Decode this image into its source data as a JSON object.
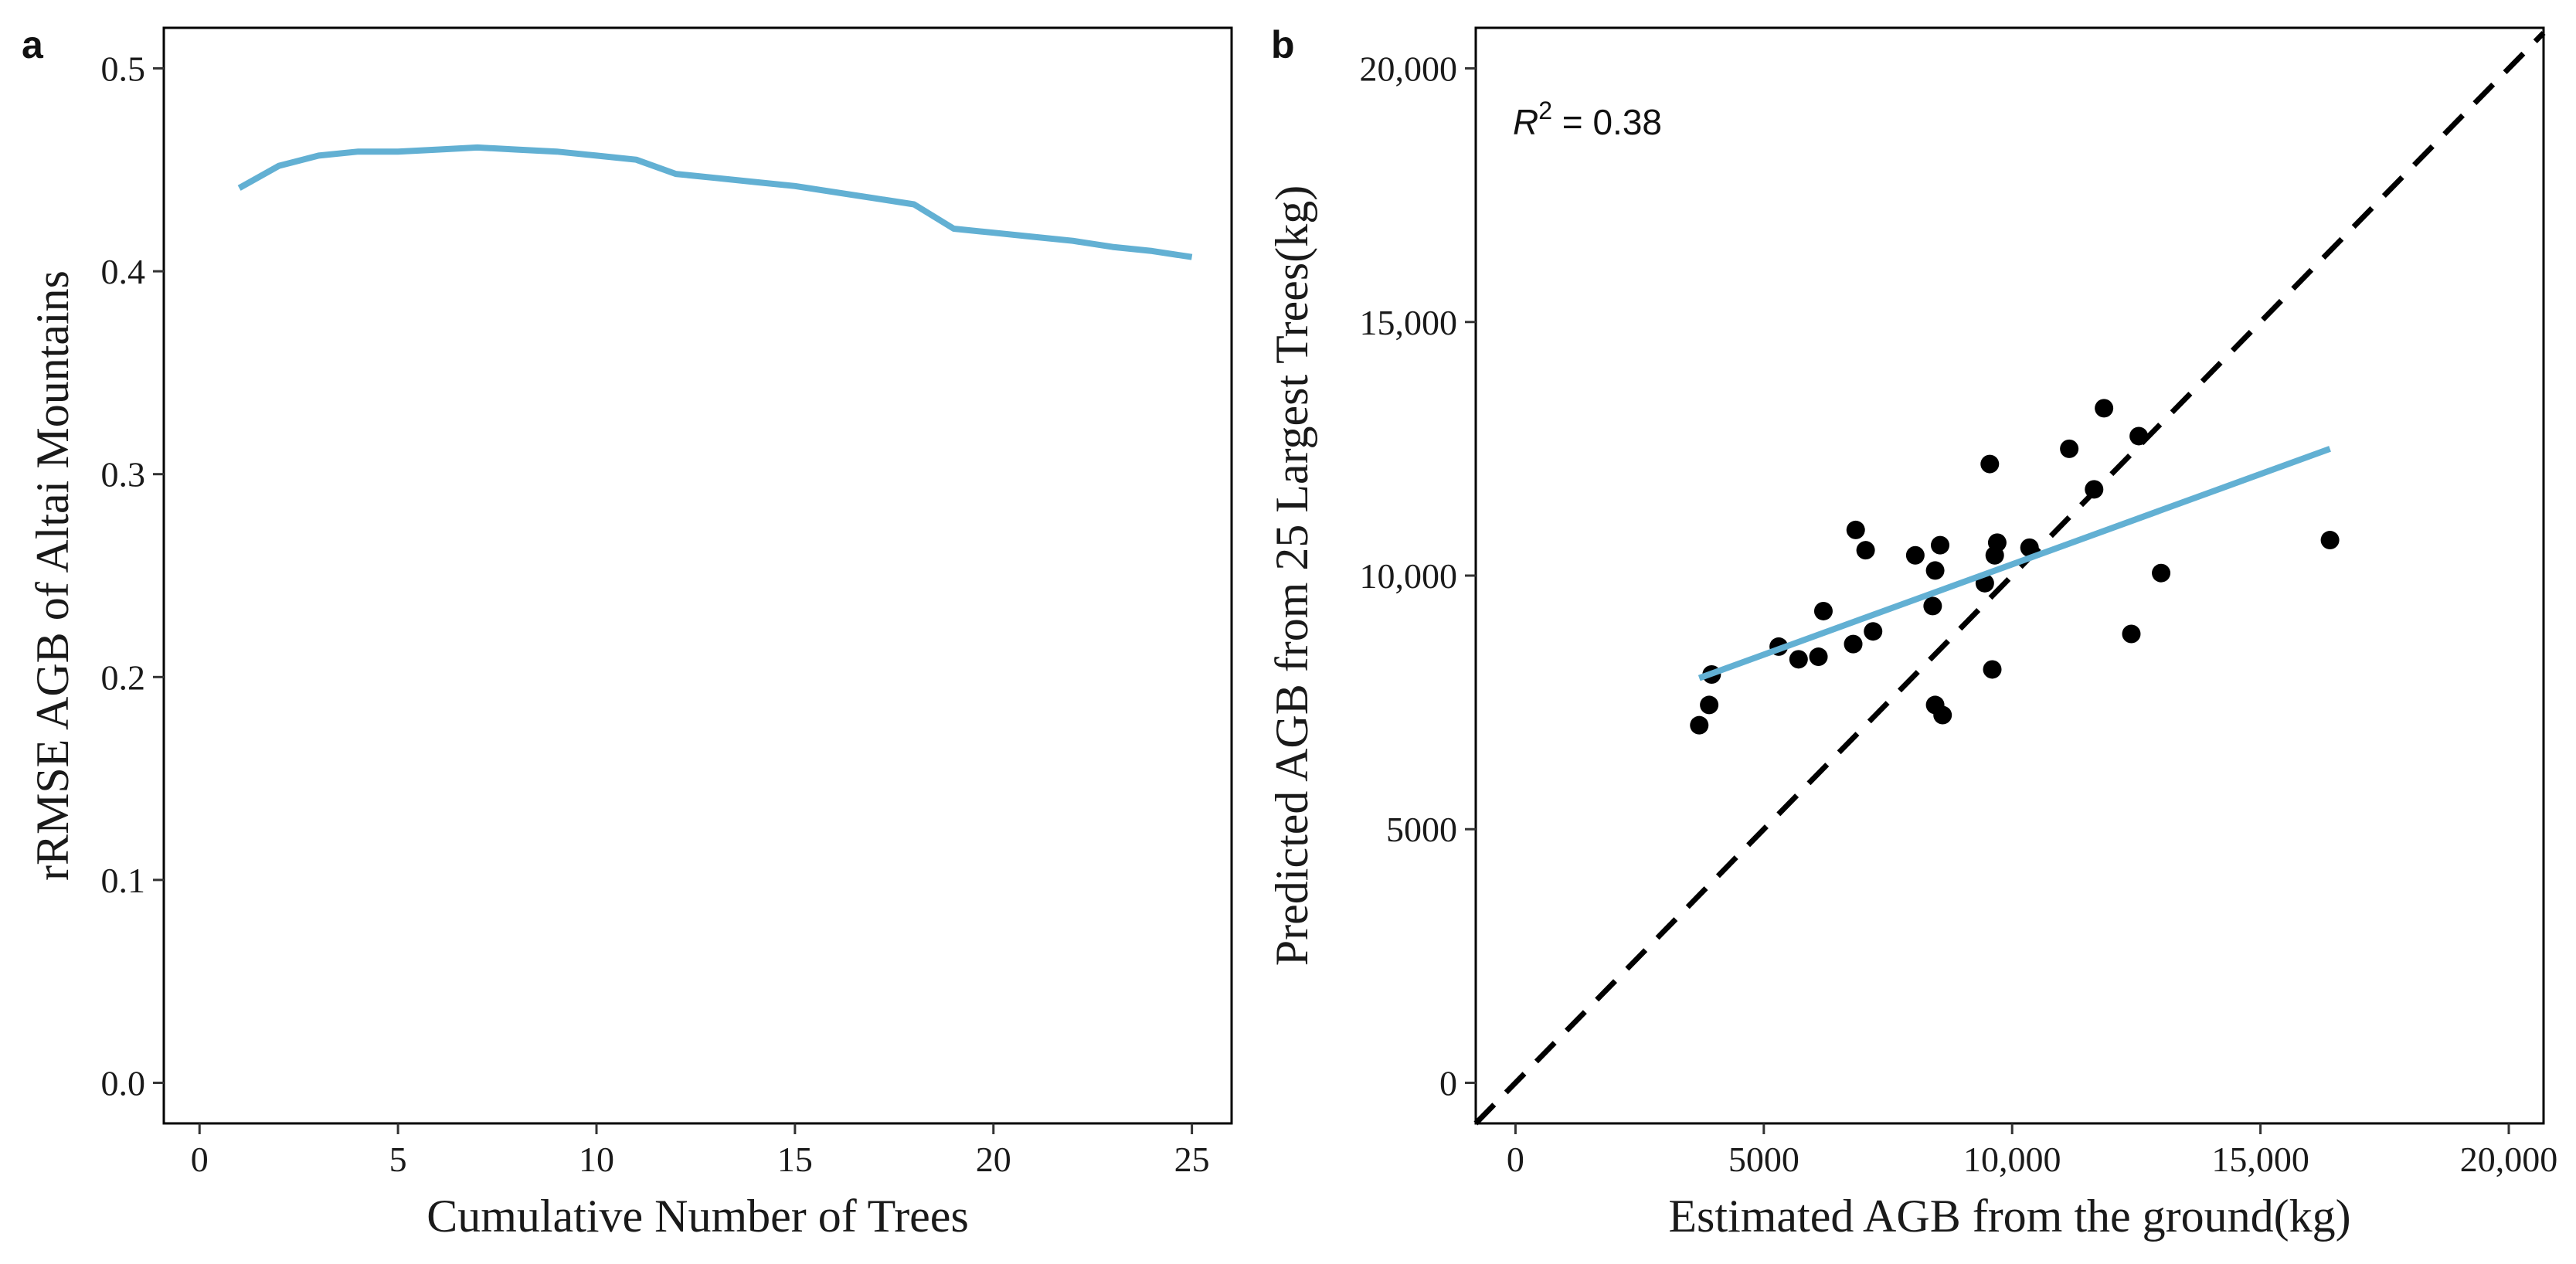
{
  "figure": {
    "panels": [
      {
        "tag": "a",
        "chart_index": 0
      },
      {
        "tag": "b",
        "chart_index": 1
      }
    ]
  },
  "chart_data": [
    {
      "type": "line",
      "xlabel": "Cumulative Number of Trees",
      "ylabel": "rRMSE AGB of Altai Mountains",
      "xlim": [
        -0.9,
        26
      ],
      "ylim": [
        -0.02,
        0.52
      ],
      "x_ticks": [
        0,
        5,
        10,
        15,
        20,
        25
      ],
      "y_ticks": [
        0.0,
        0.1,
        0.2,
        0.3,
        0.4,
        0.5
      ],
      "x_tick_labels": [
        "0",
        "5",
        "10",
        "15",
        "20",
        "25"
      ],
      "y_tick_labels": [
        "0.0",
        "0.1",
        "0.2",
        "0.3",
        "0.4",
        "0.5"
      ],
      "grid": false,
      "series": [
        {
          "color": "#62b0d3",
          "x": [
            1,
            2,
            3,
            4,
            5,
            6,
            7,
            8,
            9,
            10,
            11,
            12,
            13,
            14,
            15,
            16,
            17,
            18,
            19,
            20,
            21,
            22,
            23,
            24,
            25
          ],
          "y": [
            0.441,
            0.452,
            0.457,
            0.459,
            0.459,
            0.46,
            0.461,
            0.46,
            0.459,
            0.457,
            0.455,
            0.448,
            0.446,
            0.444,
            0.442,
            0.439,
            0.436,
            0.433,
            0.421,
            0.419,
            0.417,
            0.415,
            0.412,
            0.41,
            0.407
          ]
        }
      ]
    },
    {
      "type": "scatter",
      "xlabel": "Estimated AGB from the ground(kg)",
      "ylabel": "Predicted AGB from 25 Largest Trees(kg)",
      "xlim": [
        -800,
        20700
      ],
      "ylim": [
        -800,
        20800
      ],
      "x_ticks": [
        0,
        5000,
        10000,
        15000,
        20000
      ],
      "y_ticks": [
        0,
        5000,
        10000,
        15000,
        20000
      ],
      "x_tick_labels": [
        "0",
        "5000",
        "10,000",
        "15,000",
        "20,000"
      ],
      "y_tick_labels": [
        "0",
        "5000",
        "10,000",
        "15,000",
        "20,000"
      ],
      "grid": false,
      "annotation": {
        "r_label": "R",
        "r_sup": "2",
        "r_rest": " = 0.38"
      },
      "points": {
        "color": "#000000",
        "x": [
          3700,
          3900,
          3950,
          5300,
          5700,
          6100,
          6200,
          6800,
          6850,
          7050,
          7200,
          8050,
          8400,
          8450,
          8450,
          8550,
          8600,
          9450,
          9550,
          9600,
          9650,
          9700,
          10350,
          11150,
          11650,
          11850,
          12400,
          12550,
          13000,
          16400
        ],
        "y": [
          7050,
          7450,
          8050,
          8600,
          8350,
          8400,
          9300,
          8650,
          10900,
          10500,
          8900,
          10400,
          9400,
          10100,
          7450,
          10600,
          7250,
          9850,
          12200,
          8150,
          10400,
          10650,
          10550,
          12500,
          11700,
          13300,
          8850,
          12750,
          10050,
          10700
        ]
      },
      "fit_line": {
        "color": "#62b0d3",
        "x": [
          3700,
          16400
        ],
        "y": [
          7980,
          12500
        ]
      },
      "reference_line": {
        "color": "#000000",
        "style": "dashed",
        "x": [
          -800,
          20700
        ],
        "y": [
          -800,
          20700
        ]
      }
    }
  ]
}
